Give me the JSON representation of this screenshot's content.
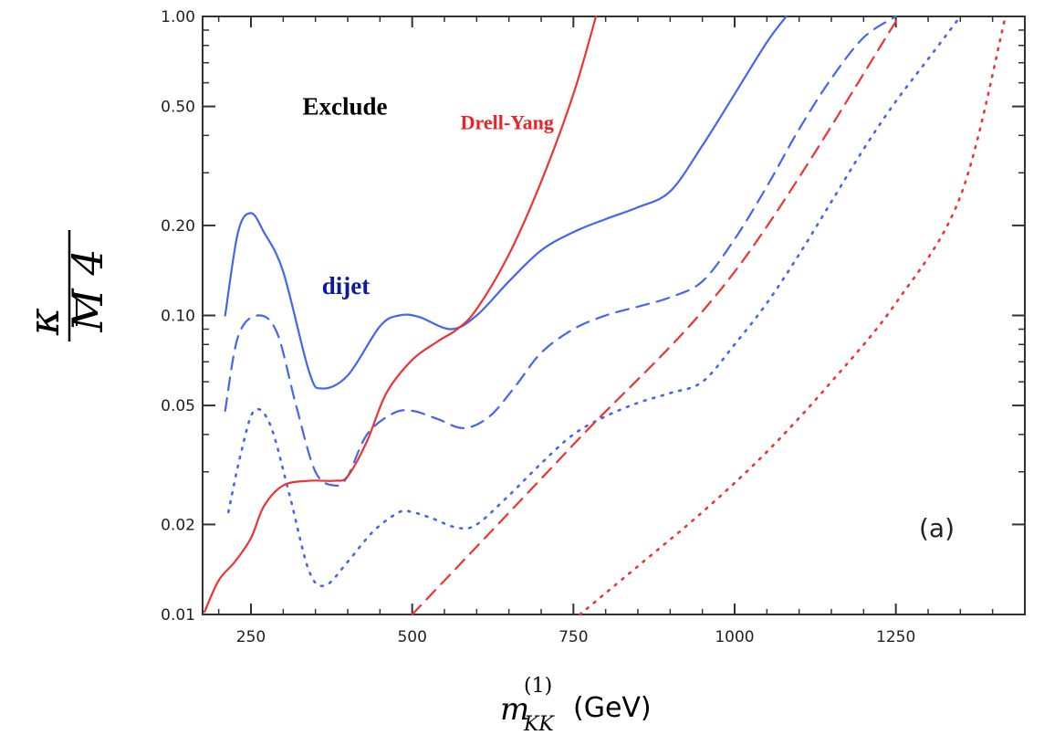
{
  "chart_data": {
    "type": "line",
    "xlabel": {
      "base": "m",
      "sub": "KK",
      "sup": "(1)",
      "unit": "(GeV)"
    },
    "ylabel": {
      "num": "κ",
      "den": "M",
      "den_sub": "4"
    },
    "xlim": [
      175,
      1450
    ],
    "ylim": [
      0.01,
      1.0
    ],
    "yscale": "log",
    "x_ticks": [
      250,
      500,
      750,
      1000,
      1250
    ],
    "x_tick_labels": [
      "250",
      "500",
      "750",
      "1000",
      "1250"
    ],
    "y_ticks": [
      0.01,
      0.02,
      0.05,
      0.1,
      0.2,
      0.5,
      1.0
    ],
    "y_tick_labels": [
      "0.01",
      "0.02",
      "0.05",
      "0.10",
      "0.20",
      "0.50",
      "1.00"
    ],
    "annotations": [
      {
        "text": "Exclude",
        "x": 330,
        "y": 0.47,
        "color": "#000000"
      },
      {
        "text": "Drell-Yang",
        "x": 575,
        "y": 0.42,
        "color": "#ee2222"
      },
      {
        "text": "dijet",
        "x": 360,
        "y": 0.118,
        "color": "#0a1a9c"
      }
    ],
    "panel_label": "(a)",
    "colors": {
      "dijet": "#4466ee",
      "drell_yan": "#ee3333",
      "frame": "#333333"
    },
    "series": [
      {
        "group": "dijet",
        "style": "solid",
        "x": [
          210,
          230,
          250,
          270,
          300,
          340,
          360,
          400,
          450,
          480,
          510,
          560,
          600,
          650,
          700,
          750,
          800,
          850,
          900,
          950,
          1000,
          1050,
          1080
        ],
        "y": [
          0.1,
          0.19,
          0.22,
          0.19,
          0.14,
          0.065,
          0.057,
          0.063,
          0.092,
          0.1,
          0.099,
          0.09,
          0.1,
          0.13,
          0.165,
          0.19,
          0.21,
          0.23,
          0.26,
          0.37,
          0.55,
          0.82,
          1.0
        ]
      },
      {
        "group": "dijet",
        "style": "dashed",
        "x": [
          210,
          230,
          260,
          290,
          320,
          350,
          380,
          400,
          430,
          470,
          500,
          540,
          580,
          620,
          660,
          700,
          750,
          800,
          850,
          900,
          950,
          1000,
          1050,
          1100,
          1150,
          1200,
          1250
        ],
        "y": [
          0.048,
          0.085,
          0.1,
          0.088,
          0.05,
          0.03,
          0.027,
          0.029,
          0.04,
          0.047,
          0.048,
          0.045,
          0.042,
          0.046,
          0.058,
          0.075,
          0.09,
          0.1,
          0.107,
          0.115,
          0.13,
          0.18,
          0.27,
          0.42,
          0.62,
          0.85,
          1.0
        ]
      },
      {
        "group": "dijet",
        "style": "dotted",
        "x": [
          215,
          235,
          255,
          280,
          310,
          340,
          365,
          400,
          440,
          480,
          500,
          530,
          570,
          600,
          650,
          700,
          750,
          800,
          850,
          900,
          950,
          1000,
          1050,
          1100,
          1150,
          1200,
          1250,
          1300,
          1350
        ],
        "y": [
          0.022,
          0.035,
          0.048,
          0.043,
          0.025,
          0.014,
          0.0125,
          0.015,
          0.019,
          0.022,
          0.022,
          0.021,
          0.0195,
          0.02,
          0.025,
          0.032,
          0.04,
          0.046,
          0.051,
          0.055,
          0.06,
          0.08,
          0.11,
          0.16,
          0.24,
          0.36,
          0.52,
          0.72,
          1.0
        ]
      },
      {
        "group": "drell_yan",
        "style": "solid",
        "x": [
          178,
          200,
          225,
          250,
          270,
          300,
          340,
          380,
          400,
          430,
          460,
          500,
          540,
          570,
          600,
          650,
          700,
          750,
          785
        ],
        "y": [
          0.0102,
          0.013,
          0.015,
          0.018,
          0.023,
          0.027,
          0.028,
          0.028,
          0.029,
          0.038,
          0.055,
          0.071,
          0.082,
          0.09,
          0.105,
          0.16,
          0.28,
          0.55,
          1.0
        ]
      },
      {
        "group": "drell_yan",
        "style": "dashed",
        "x": [
          500,
          750,
          1000,
          1255
        ],
        "y": [
          0.01,
          0.037,
          0.14,
          1.0
        ]
      },
      {
        "group": "drell_yan",
        "style": "dotted",
        "x": [
          760,
          850,
          950,
          1050,
          1150,
          1250,
          1350,
          1420
        ],
        "y": [
          0.01,
          0.0145,
          0.022,
          0.035,
          0.06,
          0.11,
          0.25,
          1.0
        ]
      }
    ]
  }
}
